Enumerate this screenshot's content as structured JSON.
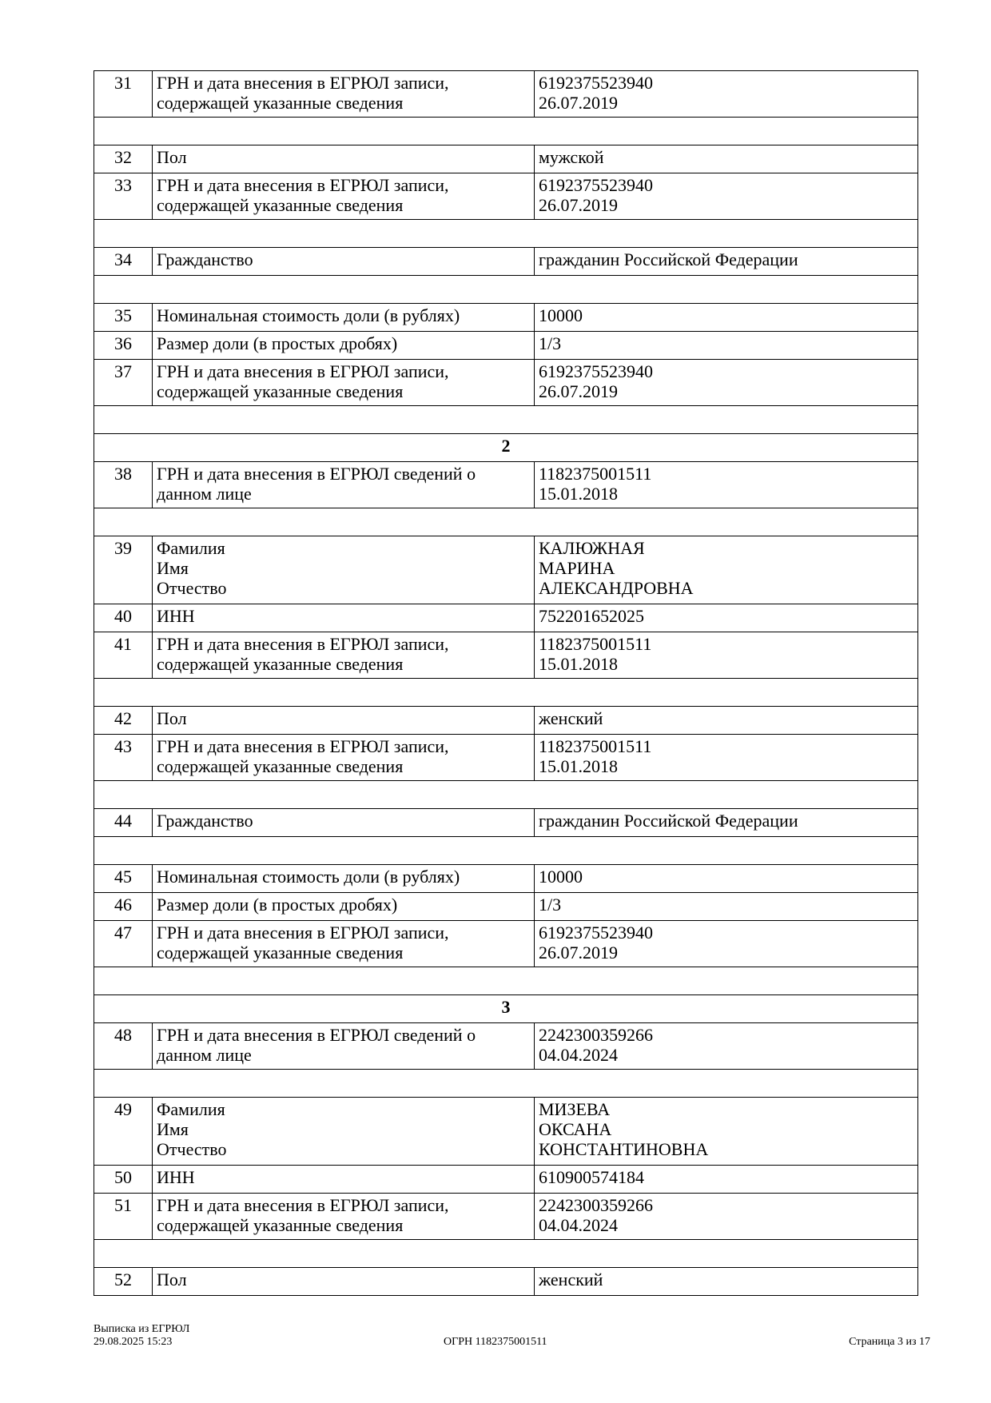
{
  "rows": [
    {
      "type": "row",
      "num": "31",
      "label": [
        "ГРН и дата внесения в ЕГРЮЛ записи,",
        "содержащей указанные сведения"
      ],
      "value": [
        "6192375523940",
        "26.07.2019"
      ]
    },
    {
      "type": "spacer"
    },
    {
      "type": "row",
      "num": "32",
      "label": [
        "Пол"
      ],
      "value": [
        "мужской"
      ]
    },
    {
      "type": "row",
      "num": "33",
      "label": [
        "ГРН и дата внесения в ЕГРЮЛ записи,",
        "содержащей указанные сведения"
      ],
      "value": [
        "6192375523940",
        "26.07.2019"
      ]
    },
    {
      "type": "spacer"
    },
    {
      "type": "row",
      "num": "34",
      "label": [
        "Гражданство"
      ],
      "value": [
        "гражданин Российской Федерации"
      ]
    },
    {
      "type": "spacer"
    },
    {
      "type": "row",
      "num": "35",
      "label": [
        "Номинальная стоимость доли (в рублях)"
      ],
      "value": [
        "10000"
      ]
    },
    {
      "type": "row",
      "num": "36",
      "label": [
        "Размер доли (в простых дробях)"
      ],
      "value": [
        "1/3"
      ]
    },
    {
      "type": "row",
      "num": "37",
      "label": [
        "ГРН и дата внесения в ЕГРЮЛ записи,",
        "содержащей указанные сведения"
      ],
      "value": [
        "6192375523940",
        "26.07.2019"
      ]
    },
    {
      "type": "spacer"
    },
    {
      "type": "header",
      "text": "2"
    },
    {
      "type": "row",
      "num": "38",
      "label": [
        "ГРН и дата внесения в ЕГРЮЛ сведений о",
        "данном лице"
      ],
      "value": [
        "1182375001511",
        "15.01.2018"
      ]
    },
    {
      "type": "spacer"
    },
    {
      "type": "row",
      "num": "39",
      "label": [
        "Фамилия",
        "Имя",
        "Отчество"
      ],
      "value": [
        "КАЛЮЖНАЯ",
        "МАРИНА",
        "АЛЕКСАНДРОВНА"
      ]
    },
    {
      "type": "row",
      "num": "40",
      "label": [
        "ИНН"
      ],
      "value": [
        "752201652025"
      ]
    },
    {
      "type": "row",
      "num": "41",
      "label": [
        "ГРН и дата внесения в ЕГРЮЛ записи,",
        "содержащей указанные сведения"
      ],
      "value": [
        "1182375001511",
        "15.01.2018"
      ]
    },
    {
      "type": "spacer"
    },
    {
      "type": "row",
      "num": "42",
      "label": [
        "Пол"
      ],
      "value": [
        "женский"
      ]
    },
    {
      "type": "row",
      "num": "43",
      "label": [
        "ГРН и дата внесения в ЕГРЮЛ записи,",
        "содержащей указанные сведения"
      ],
      "value": [
        "1182375001511",
        "15.01.2018"
      ]
    },
    {
      "type": "spacer"
    },
    {
      "type": "row",
      "num": "44",
      "label": [
        "Гражданство"
      ],
      "value": [
        "гражданин Российской Федерации"
      ]
    },
    {
      "type": "spacer"
    },
    {
      "type": "row",
      "num": "45",
      "label": [
        "Номинальная стоимость доли (в рублях)"
      ],
      "value": [
        "10000"
      ]
    },
    {
      "type": "row",
      "num": "46",
      "label": [
        "Размер доли (в простых дробях)"
      ],
      "value": [
        "1/3"
      ]
    },
    {
      "type": "row",
      "num": "47",
      "label": [
        "ГРН и дата внесения в ЕГРЮЛ записи,",
        "содержащей указанные сведения"
      ],
      "value": [
        "6192375523940",
        "26.07.2019"
      ]
    },
    {
      "type": "spacer"
    },
    {
      "type": "header",
      "text": "3"
    },
    {
      "type": "row",
      "num": "48",
      "label": [
        "ГРН и дата внесения в ЕГРЮЛ сведений о",
        "данном лице"
      ],
      "value": [
        "2242300359266",
        "04.04.2024"
      ]
    },
    {
      "type": "spacer"
    },
    {
      "type": "row",
      "num": "49",
      "label": [
        "Фамилия",
        "Имя",
        "Отчество"
      ],
      "value": [
        "МИЗЕВА",
        "ОКСАНА",
        "КОНСТАНТИНОВНА"
      ]
    },
    {
      "type": "row",
      "num": "50",
      "label": [
        "ИНН"
      ],
      "value": [
        "610900574184"
      ]
    },
    {
      "type": "row",
      "num": "51",
      "label": [
        "ГРН и дата внесения в ЕГРЮЛ записи,",
        "содержащей указанные сведения"
      ],
      "value": [
        "2242300359266",
        "04.04.2024"
      ]
    },
    {
      "type": "spacer"
    },
    {
      "type": "row",
      "num": "52",
      "label": [
        "Пол"
      ],
      "value": [
        "женский"
      ]
    }
  ],
  "footer": {
    "doc_title": "Выписка из ЕГРЮЛ",
    "datetime": "29.08.2025 15:23",
    "ogrn": "ОГРН 1182375001511",
    "page": "Страница 3 из 17"
  }
}
